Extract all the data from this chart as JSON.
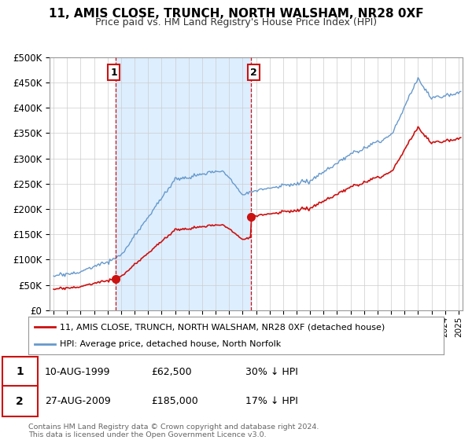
{
  "title": "11, AMIS CLOSE, TRUNCH, NORTH WALSHAM, NR28 0XF",
  "subtitle": "Price paid vs. HM Land Registry's House Price Index (HPI)",
  "sale1_date": 1999.62,
  "sale1_price": 62500,
  "sale2_date": 2009.65,
  "sale2_price": 185000,
  "legend_property": "11, AMIS CLOSE, TRUNCH, NORTH WALSHAM, NR28 0XF (detached house)",
  "legend_hpi": "HPI: Average price, detached house, North Norfolk",
  "footnote1": "Contains HM Land Registry data © Crown copyright and database right 2024.",
  "footnote2": "This data is licensed under the Open Government Licence v3.0.",
  "property_color": "#cc1111",
  "hpi_color": "#6699cc",
  "vline_color": "#cc1111",
  "shade_color": "#ddeeff",
  "ylim_min": 0,
  "ylim_max": 500000,
  "xlim_start": 1994.7,
  "xlim_end": 2025.3,
  "title_fontsize": 11,
  "subtitle_fontsize": 9
}
